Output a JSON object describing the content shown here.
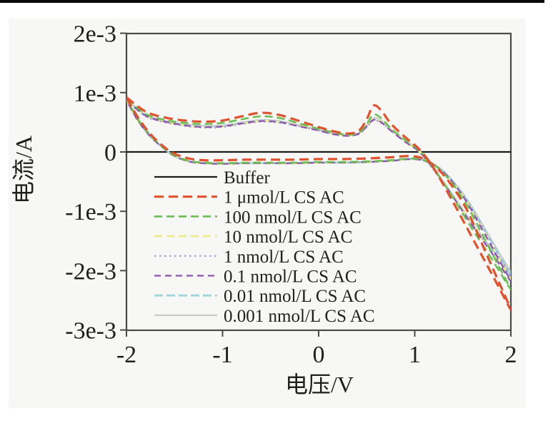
{
  "chart_data": {
    "type": "line",
    "title": "",
    "xlabel": "电压/V",
    "ylabel": "电流/A",
    "xlim": [
      -2,
      2
    ],
    "ylim": [
      -0.003,
      0.002
    ],
    "grid": false,
    "legend_position": "inside-left-middle",
    "current_unit_note": "series currents listed in units of 1e-3 A (mA)",
    "x_ticks": [
      {
        "label": "-2",
        "v": -2
      },
      {
        "label": "-1",
        "v": -1
      },
      {
        "label": "0",
        "v": 0
      },
      {
        "label": "1",
        "v": 1
      },
      {
        "label": "2",
        "v": 2
      }
    ],
    "y_ticks": [
      {
        "label": "2e-3",
        "mA": 2
      },
      {
        "label": "1e-3",
        "mA": 1
      },
      {
        "label": "0",
        "mA": 0
      },
      {
        "label": "-1e-3",
        "mA": -1
      },
      {
        "label": "-2e-3",
        "mA": -2
      },
      {
        "label": "-3e-3",
        "mA": -3
      }
    ],
    "series": [
      {
        "label": "Buffer",
        "color": "#1c1c1c",
        "dash": "",
        "width": 2.2,
        "v": [
          -2,
          2
        ],
        "i_mA": [
          0,
          0
        ]
      },
      {
        "label": "1 μmol/L CS AC",
        "color": "#e2512b",
        "dash": "13 7",
        "width": 3.2,
        "v": [
          -2,
          -1.8,
          -1.6,
          -1.4,
          -1.2,
          -1.0,
          -0.8,
          -0.6,
          -0.4,
          -0.2,
          0,
          0.15,
          0.3,
          0.42,
          0.5,
          0.57,
          0.65,
          0.75,
          0.9,
          1.05,
          1.2,
          1.4,
          1.6,
          1.8,
          2.0,
          1.85,
          1.7,
          1.55,
          1.4,
          1.25,
          1.1,
          0.95,
          0.75,
          0.5,
          0.25,
          0,
          -0.25,
          -0.5,
          -0.75,
          -1.0,
          -1.2,
          -1.35,
          -1.5,
          -1.62,
          -1.75,
          -1.88,
          -2.0
        ],
        "i_mA": [
          0.92,
          0.68,
          0.58,
          0.53,
          0.51,
          0.53,
          0.6,
          0.66,
          0.62,
          0.52,
          0.42,
          0.35,
          0.31,
          0.36,
          0.55,
          0.78,
          0.7,
          0.48,
          0.25,
          0.04,
          -0.28,
          -0.85,
          -1.45,
          -2.05,
          -2.66,
          -2.1,
          -1.55,
          -1.0,
          -0.6,
          -0.3,
          -0.12,
          -0.07,
          -0.09,
          -0.11,
          -0.12,
          -0.12,
          -0.13,
          -0.13,
          -0.13,
          -0.14,
          -0.14,
          -0.11,
          -0.03,
          0.1,
          0.3,
          0.58,
          0.92
        ]
      },
      {
        "label": "100 nmol/L CS AC",
        "color": "#6cbd54",
        "dash": "11 6",
        "width": 2.6,
        "v": [
          -2,
          -1.8,
          -1.6,
          -1.4,
          -1.2,
          -1.0,
          -0.8,
          -0.6,
          -0.4,
          -0.2,
          0,
          0.15,
          0.3,
          0.42,
          0.5,
          0.57,
          0.65,
          0.75,
          0.9,
          1.05,
          1.2,
          1.4,
          1.6,
          1.8,
          2.0,
          1.85,
          1.7,
          1.55,
          1.4,
          1.25,
          1.1,
          0.95,
          0.75,
          0.5,
          0.25,
          0,
          -0.25,
          -0.5,
          -0.75,
          -1.0,
          -1.2,
          -1.35,
          -1.5,
          -1.62,
          -1.75,
          -1.88,
          -2.0
        ],
        "i_mA": [
          0.9,
          0.64,
          0.54,
          0.49,
          0.47,
          0.49,
          0.55,
          0.6,
          0.57,
          0.48,
          0.39,
          0.33,
          0.29,
          0.33,
          0.47,
          0.63,
          0.57,
          0.4,
          0.2,
          0.02,
          -0.28,
          -0.78,
          -1.3,
          -1.8,
          -2.32,
          -1.85,
          -1.38,
          -0.92,
          -0.55,
          -0.28,
          -0.14,
          -0.11,
          -0.14,
          -0.16,
          -0.17,
          -0.17,
          -0.18,
          -0.18,
          -0.18,
          -0.19,
          -0.18,
          -0.15,
          -0.06,
          0.08,
          0.28,
          0.55,
          0.9
        ]
      },
      {
        "label": "10 nmol/L CS AC",
        "color": "#ebeb8d",
        "dash": "11 6",
        "width": 2.8,
        "v": [
          -2,
          -1.8,
          -1.6,
          -1.4,
          -1.2,
          -1.0,
          -0.8,
          -0.6,
          -0.4,
          -0.2,
          0,
          0.15,
          0.3,
          0.42,
          0.5,
          0.57,
          0.65,
          0.75,
          0.9,
          1.05,
          1.2,
          1.4,
          1.6,
          1.8,
          2.0,
          1.85,
          1.7,
          1.55,
          1.4,
          1.25,
          1.1,
          0.95,
          0.75,
          0.5,
          0.25,
          0,
          -0.25,
          -0.5,
          -0.75,
          -1.0,
          -1.2,
          -1.35,
          -1.5,
          -1.62,
          -1.75,
          -1.88,
          -2.0
        ],
        "i_mA": [
          0.88,
          0.61,
          0.51,
          0.45,
          0.42,
          0.43,
          0.48,
          0.52,
          0.5,
          0.44,
          0.37,
          0.31,
          0.28,
          0.31,
          0.43,
          0.55,
          0.51,
          0.37,
          0.18,
          0.0,
          -0.3,
          -0.75,
          -1.22,
          -1.68,
          -2.15,
          -1.72,
          -1.28,
          -0.86,
          -0.52,
          -0.27,
          -0.15,
          -0.12,
          -0.15,
          -0.17,
          -0.18,
          -0.18,
          -0.19,
          -0.19,
          -0.19,
          -0.2,
          -0.19,
          -0.16,
          -0.07,
          0.07,
          0.26,
          0.53,
          0.88
        ]
      },
      {
        "label": "1 nmol/L CS AC",
        "color": "#9aa0cf",
        "dash": "2.5 4.5",
        "width": 2.2,
        "v": [
          -2,
          -1.8,
          -1.6,
          -1.4,
          -1.2,
          -1.0,
          -0.8,
          -0.6,
          -0.4,
          -0.2,
          0,
          0.15,
          0.3,
          0.42,
          0.5,
          0.57,
          0.65,
          0.75,
          0.9,
          1.05,
          1.2,
          1.4,
          1.6,
          1.8,
          2.0,
          1.85,
          1.7,
          1.55,
          1.4,
          1.25,
          1.1,
          0.95,
          0.75,
          0.5,
          0.25,
          0,
          -0.25,
          -0.5,
          -0.75,
          -1.0,
          -1.2,
          -1.35,
          -1.5,
          -1.62,
          -1.75,
          -1.88,
          -2.0
        ],
        "i_mA": [
          0.87,
          0.6,
          0.5,
          0.44,
          0.41,
          0.42,
          0.47,
          0.51,
          0.49,
          0.43,
          0.36,
          0.3,
          0.27,
          0.3,
          0.42,
          0.53,
          0.49,
          0.36,
          0.17,
          -0.01,
          -0.31,
          -0.76,
          -1.23,
          -1.66,
          -2.1,
          -1.68,
          -1.25,
          -0.84,
          -0.51,
          -0.27,
          -0.15,
          -0.12,
          -0.15,
          -0.17,
          -0.18,
          -0.18,
          -0.19,
          -0.19,
          -0.19,
          -0.2,
          -0.19,
          -0.16,
          -0.07,
          0.07,
          0.26,
          0.52,
          0.87
        ]
      },
      {
        "label": "0.1 nmol/L CS AC",
        "color": "#8f4fae",
        "dash": "9 6",
        "width": 2.2,
        "v": [
          -2,
          -1.8,
          -1.6,
          -1.4,
          -1.2,
          -1.0,
          -0.8,
          -0.6,
          -0.4,
          -0.2,
          0,
          0.15,
          0.3,
          0.42,
          0.5,
          0.57,
          0.65,
          0.75,
          0.9,
          1.05,
          1.2,
          1.4,
          1.6,
          1.8,
          2.0,
          1.85,
          1.7,
          1.55,
          1.4,
          1.25,
          1.1,
          0.95,
          0.75,
          0.5,
          0.25,
          0,
          -0.25,
          -0.5,
          -0.75,
          -1.0,
          -1.2,
          -1.35,
          -1.5,
          -1.62,
          -1.75,
          -1.88,
          -2.0
        ],
        "i_mA": [
          0.87,
          0.61,
          0.51,
          0.45,
          0.42,
          0.43,
          0.48,
          0.52,
          0.5,
          0.43,
          0.36,
          0.3,
          0.27,
          0.31,
          0.43,
          0.54,
          0.5,
          0.36,
          0.17,
          0.0,
          -0.3,
          -0.76,
          -1.24,
          -1.7,
          -2.18,
          -1.74,
          -1.3,
          -0.87,
          -0.52,
          -0.27,
          -0.15,
          -0.12,
          -0.15,
          -0.17,
          -0.18,
          -0.18,
          -0.19,
          -0.19,
          -0.19,
          -0.2,
          -0.19,
          -0.16,
          -0.07,
          0.07,
          0.26,
          0.53,
          0.87
        ]
      },
      {
        "label": "0.01 nmol/L CS AC",
        "color": "#a0d6dc",
        "dash": "12 5",
        "width": 2.8,
        "v": [
          -2,
          -1.8,
          -1.6,
          -1.4,
          -1.2,
          -1.0,
          -0.8,
          -0.6,
          -0.4,
          -0.2,
          0,
          0.15,
          0.3,
          0.42,
          0.5,
          0.57,
          0.65,
          0.75,
          0.9,
          1.05,
          1.2,
          1.4,
          1.6,
          1.8,
          2.0,
          1.85,
          1.7,
          1.55,
          1.4,
          1.25,
          1.1,
          0.95,
          0.75,
          0.5,
          0.25,
          0,
          -0.25,
          -0.5,
          -0.75,
          -1.0,
          -1.2,
          -1.35,
          -1.5,
          -1.62,
          -1.75,
          -1.88,
          -2.0
        ],
        "i_mA": [
          0.88,
          0.62,
          0.52,
          0.46,
          0.43,
          0.44,
          0.49,
          0.53,
          0.51,
          0.44,
          0.37,
          0.31,
          0.28,
          0.31,
          0.44,
          0.56,
          0.52,
          0.38,
          0.19,
          0.01,
          -0.29,
          -0.74,
          -1.21,
          -1.65,
          -2.08,
          -1.66,
          -1.24,
          -0.83,
          -0.5,
          -0.26,
          -0.14,
          -0.12,
          -0.15,
          -0.17,
          -0.18,
          -0.18,
          -0.19,
          -0.19,
          -0.19,
          -0.2,
          -0.19,
          -0.16,
          -0.07,
          0.07,
          0.26,
          0.53,
          0.88
        ]
      },
      {
        "label": "0.001 nmol/L CS AC",
        "color": "#c6c6c9",
        "dash": "",
        "width": 2.0,
        "v": [
          -2,
          -1.8,
          -1.6,
          -1.4,
          -1.2,
          -1.0,
          -0.8,
          -0.6,
          -0.4,
          -0.2,
          0,
          0.15,
          0.3,
          0.42,
          0.5,
          0.57,
          0.65,
          0.75,
          0.9,
          1.05,
          1.2,
          1.4,
          1.6,
          1.8,
          2.0,
          1.85,
          1.7,
          1.55,
          1.4,
          1.25,
          1.1,
          0.95,
          0.75,
          0.5,
          0.25,
          0,
          -0.25,
          -0.5,
          -0.75,
          -1.0,
          -1.2,
          -1.35,
          -1.5,
          -1.62,
          -1.75,
          -1.88,
          -2.0
        ],
        "i_mA": [
          0.89,
          0.63,
          0.53,
          0.47,
          0.44,
          0.45,
          0.5,
          0.54,
          0.52,
          0.45,
          0.38,
          0.32,
          0.29,
          0.32,
          0.45,
          0.57,
          0.53,
          0.39,
          0.2,
          0.02,
          -0.28,
          -0.73,
          -1.2,
          -1.63,
          -2.03,
          -1.62,
          -1.21,
          -0.81,
          -0.49,
          -0.26,
          -0.14,
          -0.12,
          -0.15,
          -0.17,
          -0.18,
          -0.18,
          -0.19,
          -0.19,
          -0.19,
          -0.2,
          -0.19,
          -0.16,
          -0.07,
          0.07,
          0.26,
          0.53,
          0.89
        ]
      }
    ]
  },
  "colors": {
    "frame": "#4a4a4a",
    "text": "#1f1f1f",
    "scan_bar": "#0a0a0a",
    "scan_area_bg": "#f7f7f5"
  }
}
